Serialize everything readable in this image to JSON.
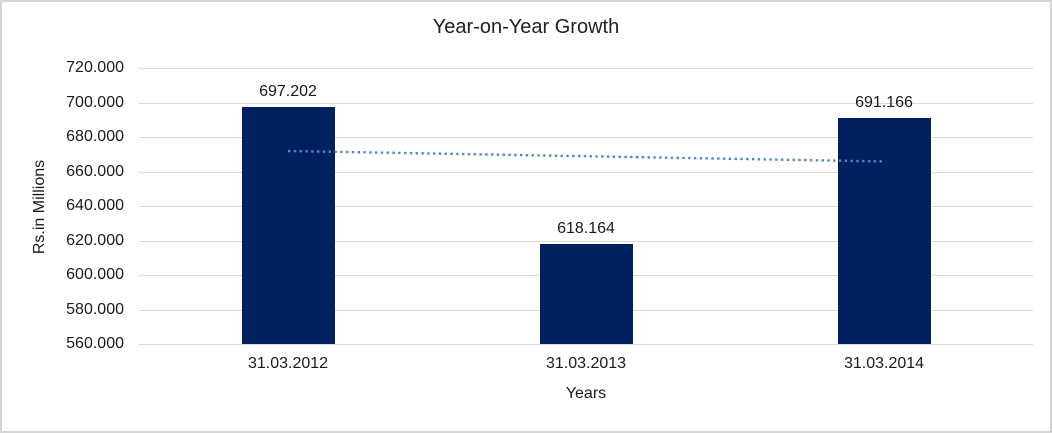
{
  "chart_data": {
    "type": "bar",
    "title": "Year-on-Year Growth",
    "xlabel": "Years",
    "ylabel": "Rs.in Millions",
    "categories": [
      "31.03.2012",
      "31.03.2013",
      "31.03.2014"
    ],
    "values": [
      697.202,
      618.164,
      691.166
    ],
    "data_labels": [
      "697.202",
      "618.164",
      "691.166"
    ],
    "ylim": [
      560,
      720
    ],
    "ytick_step": 20,
    "ytick_labels": [
      "720.000",
      "700.000",
      "680.000",
      "660.000",
      "640.000",
      "620.000",
      "600.000",
      "580.000",
      "560.000"
    ],
    "grid": true,
    "legend": "none",
    "bar_color": "#002060",
    "gridline_color": "#d9d9d9",
    "trendline": {
      "type": "linear",
      "style": "dotted",
      "color": "#4f86c6",
      "start_value": 671.9,
      "end_value": 665.8
    }
  }
}
